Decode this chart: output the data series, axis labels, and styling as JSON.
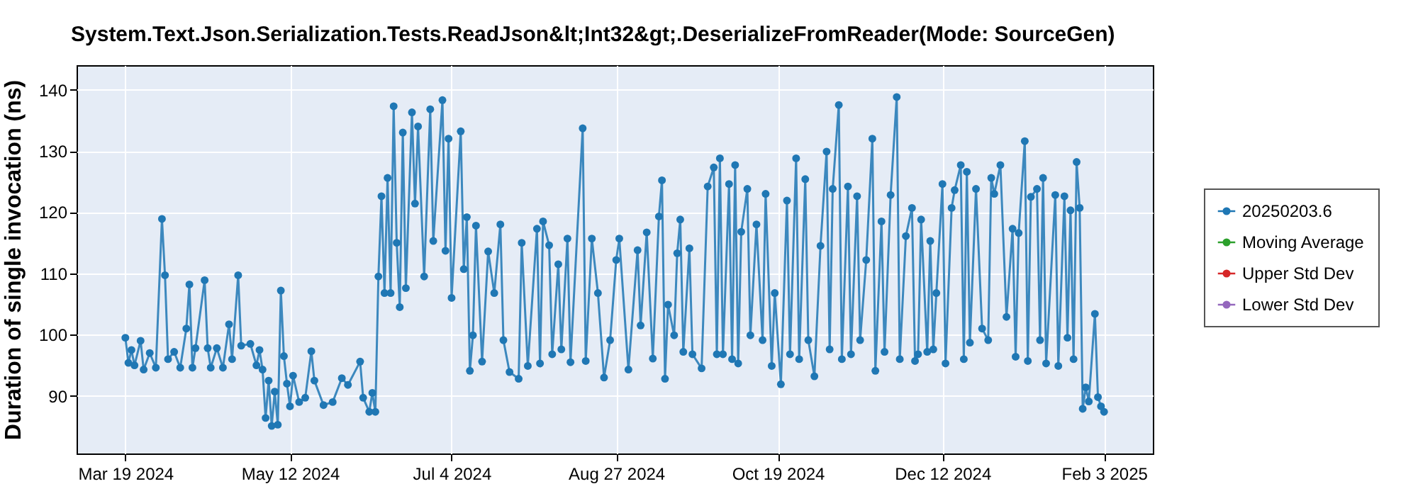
{
  "chart_data": {
    "type": "line",
    "title": "System.Text.Json.Serialization.Tests.ReadJson&lt;Int32&gt;.DeserializeFromReader(Mode: SourceGen)",
    "ylabel": "Duration of single invocation (ns)",
    "x": [
      "2024-03-19",
      "2024-03-20",
      "2024-03-21",
      "2024-03-22",
      "2024-03-24",
      "2024-03-25",
      "2024-03-27",
      "2024-03-29",
      "2024-03-31",
      "2024-04-01",
      "2024-04-02",
      "2024-04-04",
      "2024-04-06",
      "2024-04-08",
      "2024-04-09",
      "2024-04-10",
      "2024-04-11",
      "2024-04-14",
      "2024-04-15",
      "2024-04-16",
      "2024-04-18",
      "2024-04-20",
      "2024-04-22",
      "2024-04-23",
      "2024-04-25",
      "2024-04-26",
      "2024-04-29",
      "2024-05-01",
      "2024-05-02",
      "2024-05-03",
      "2024-05-04",
      "2024-05-05",
      "2024-05-06",
      "2024-05-07",
      "2024-05-08",
      "2024-05-09",
      "2024-05-10",
      "2024-05-11",
      "2024-05-12",
      "2024-05-13",
      "2024-05-15",
      "2024-05-17",
      "2024-05-19",
      "2024-05-20",
      "2024-05-23",
      "2024-05-26",
      "2024-05-29",
      "2024-05-31",
      "2024-06-04",
      "2024-06-05",
      "2024-06-07",
      "2024-06-08",
      "2024-06-09",
      "2024-06-10",
      "2024-06-11",
      "2024-06-12",
      "2024-06-13",
      "2024-06-14",
      "2024-06-15",
      "2024-06-16",
      "2024-06-17",
      "2024-06-18",
      "2024-06-19",
      "2024-06-21",
      "2024-06-22",
      "2024-06-23",
      "2024-06-25",
      "2024-06-27",
      "2024-06-28",
      "2024-07-01",
      "2024-07-02",
      "2024-07-03",
      "2024-07-04",
      "2024-07-07",
      "2024-07-08",
      "2024-07-09",
      "2024-07-10",
      "2024-07-11",
      "2024-07-12",
      "2024-07-14",
      "2024-07-16",
      "2024-07-18",
      "2024-07-20",
      "2024-07-21",
      "2024-07-23",
      "2024-07-26",
      "2024-07-27",
      "2024-07-29",
      "2024-08-01",
      "2024-08-02",
      "2024-08-03",
      "2024-08-05",
      "2024-08-06",
      "2024-08-08",
      "2024-08-09",
      "2024-08-11",
      "2024-08-12",
      "2024-08-16",
      "2024-08-17",
      "2024-08-19",
      "2024-08-21",
      "2024-08-23",
      "2024-08-25",
      "2024-08-27",
      "2024-08-28",
      "2024-08-31",
      "2024-09-03",
      "2024-09-04",
      "2024-09-06",
      "2024-09-08",
      "2024-09-10",
      "2024-09-11",
      "2024-09-12",
      "2024-09-13",
      "2024-09-15",
      "2024-09-16",
      "2024-09-17",
      "2024-09-18",
      "2024-09-20",
      "2024-09-21",
      "2024-09-24",
      "2024-09-26",
      "2024-09-28",
      "2024-09-29",
      "2024-09-30",
      "2024-10-01",
      "2024-10-03",
      "2024-10-04",
      "2024-10-05",
      "2024-10-06",
      "2024-10-07",
      "2024-10-09",
      "2024-10-10",
      "2024-10-12",
      "2024-10-14",
      "2024-10-15",
      "2024-10-17",
      "2024-10-18",
      "2024-10-20",
      "2024-10-22",
      "2024-10-23",
      "2024-10-25",
      "2024-10-26",
      "2024-10-28",
      "2024-10-29",
      "2024-10-31",
      "2024-11-02",
      "2024-11-04",
      "2024-11-05",
      "2024-11-06",
      "2024-11-08",
      "2024-11-09",
      "2024-11-11",
      "2024-11-12",
      "2024-11-14",
      "2024-11-15",
      "2024-11-17",
      "2024-11-19",
      "2024-11-20",
      "2024-11-22",
      "2024-11-23",
      "2024-11-25",
      "2024-11-27",
      "2024-11-28",
      "2024-11-30",
      "2024-12-02",
      "2024-12-03",
      "2024-12-04",
      "2024-12-05",
      "2024-12-07",
      "2024-12-08",
      "2024-12-09",
      "2024-12-10",
      "2024-12-12",
      "2024-12-13",
      "2024-12-15",
      "2024-12-16",
      "2024-12-18",
      "2024-12-19",
      "2024-12-20",
      "2024-12-21",
      "2024-12-23",
      "2024-12-25",
      "2024-12-27",
      "2024-12-28",
      "2024-12-29",
      "2024-12-31",
      "2025-01-02",
      "2025-01-04",
      "2025-01-05",
      "2025-01-06",
      "2025-01-08",
      "2025-01-09",
      "2025-01-10",
      "2025-01-12",
      "2025-01-13",
      "2025-01-14",
      "2025-01-15",
      "2025-01-18",
      "2025-01-19",
      "2025-01-21",
      "2025-01-22",
      "2025-01-23",
      "2025-01-24",
      "2025-01-25",
      "2025-01-26",
      "2025-01-27",
      "2025-01-28",
      "2025-01-29",
      "2025-01-31",
      "2025-02-01",
      "2025-02-02",
      "2025-02-03"
    ],
    "series": [
      {
        "name": "20250203.6",
        "color": "#1f77b4",
        "values": [
          99.5,
          95.4,
          97.5,
          95,
          99,
          94.3,
          97,
          94.6,
          118.9,
          109.7,
          96,
          97.2,
          94.6,
          101,
          108.2,
          94.6,
          97.8,
          108.9,
          97.8,
          94.6,
          97.8,
          94.6,
          101.7,
          96,
          109.7,
          98.2,
          98.5,
          95,
          97.5,
          94.3,
          86.4,
          92.5,
          85.1,
          90.7,
          85.3,
          107.2,
          96.5,
          92,
          88.3,
          93.3,
          89,
          89.7,
          97.3,
          92.5,
          88.5,
          89,
          92.9,
          91.8,
          95.6,
          89.7,
          87.4,
          90.5,
          87.4,
          109.5,
          122.6,
          106.8,
          125.6,
          106.8,
          137.3,
          115,
          104.5,
          133,
          107.6,
          136.3,
          121.4,
          134,
          109.5,
          136.8,
          115.3,
          138.3,
          113.7,
          132,
          106,
          133.2,
          110.7,
          119.2,
          94.1,
          99.9,
          117.8,
          95.6,
          113.6,
          106.8,
          118,
          99.1,
          93.9,
          92.8,
          115,
          94.9,
          117.3,
          95.3,
          118.5,
          114.6,
          96.8,
          111.5,
          97.6,
          115.7,
          95.5,
          133.7,
          95.7,
          115.7,
          106.8,
          93,
          99.1,
          112.2,
          115.7,
          94.3,
          113.8,
          101.5,
          116.7,
          96.1,
          119.3,
          125.2,
          92.8,
          104.9,
          99.9,
          113.3,
          118.8,
          97.2,
          114.1,
          96.8,
          94.5,
          124.2,
          127.3,
          96.8,
          128.8,
          96.8,
          124.6,
          96,
          127.7,
          95.3,
          116.8,
          123.8,
          99.9,
          118,
          99.1,
          123,
          94.9,
          106.8,
          91.9,
          121.9,
          96.8,
          128.8,
          96,
          125.4,
          99.1,
          93.2,
          114.5,
          129.9,
          97.6,
          123.8,
          137.5,
          96,
          124.2,
          96.8,
          122.6,
          99.1,
          112.2,
          132,
          94.1,
          118.5,
          97.2,
          122.8,
          138.8,
          96,
          116.1,
          120.7,
          95.7,
          96.8,
          118.8,
          97.2,
          115.3,
          97.6,
          106.8,
          124.6,
          95.3,
          120.7,
          123.6,
          127.7,
          96,
          126.6,
          98.7,
          123.8,
          101,
          99.1,
          125.6,
          123,
          127.7,
          102.9,
          117.3,
          96.4,
          116.6,
          131.6,
          95.7,
          122.5,
          123.8,
          99.1,
          125.6,
          95.3,
          122.8,
          94.9,
          122.6,
          99.5,
          120.3,
          96,
          128.2,
          120.7,
          87.9,
          91.4,
          89.1,
          103.4,
          89.8,
          88.3,
          87.4
        ]
      },
      {
        "name": "Moving Average",
        "color": "#2ca02c",
        "values": [
          null,
          null,
          null,
          null,
          null,
          null,
          null,
          null,
          null,
          null,
          null,
          null,
          null,
          null,
          null,
          null,
          null,
          null,
          null,
          null,
          null,
          null,
          null,
          null,
          null,
          null,
          null,
          null,
          null,
          null,
          null,
          null,
          null,
          null,
          null,
          null,
          null,
          null,
          null,
          null,
          null,
          null,
          null,
          null,
          null,
          null,
          null,
          null,
          null,
          null,
          null,
          null,
          null,
          null,
          null,
          null,
          null,
          null,
          null,
          null,
          null,
          null,
          null,
          null,
          null,
          null,
          null,
          null,
          null,
          null,
          null,
          null,
          null,
          null,
          null,
          null,
          null,
          null,
          null,
          null,
          null,
          null,
          null,
          null,
          null,
          null,
          null,
          null,
          null,
          null,
          null,
          null,
          null,
          null,
          null,
          null,
          null,
          null,
          null,
          null,
          null,
          null,
          null,
          null,
          null,
          null,
          null,
          null,
          null,
          null,
          null,
          null,
          null,
          null,
          null,
          null,
          null,
          null,
          null,
          null,
          null,
          null,
          null,
          null,
          null,
          null,
          null,
          null,
          null,
          null,
          null,
          null,
          null,
          null,
          null,
          null,
          null,
          null,
          null,
          null,
          null,
          null,
          null,
          null,
          null,
          null,
          null,
          null,
          null,
          null,
          null,
          null,
          null,
          null,
          null,
          null,
          null,
          null,
          null,
          null,
          null,
          null,
          null,
          null,
          null,
          null,
          null,
          null,
          null,
          null,
          null,
          null,
          null,
          null,
          null,
          null,
          null,
          null,
          null,
          null,
          null,
          null,
          null,
          null,
          null,
          null,
          null,
          null,
          null,
          null,
          null,
          null,
          null,
          null,
          null,
          null,
          null,
          null,
          null,
          null,
          null,
          null,
          null,
          null,
          null,
          null,
          null,
          null,
          null,
          null,
          null,
          null,
          null
        ]
      },
      {
        "name": "Upper Std Dev",
        "color": "#d62728",
        "values": [
          null,
          null,
          null,
          null,
          null,
          null,
          null,
          null,
          null,
          null,
          null,
          null,
          null,
          null,
          null,
          null,
          null,
          null,
          null,
          null,
          null,
          null,
          null,
          null,
          null,
          null,
          null,
          null,
          null,
          null,
          null,
          null,
          null,
          null,
          null,
          null,
          null,
          null,
          null,
          null,
          null,
          null,
          null,
          null,
          null,
          null,
          null,
          null,
          null,
          null,
          null,
          null,
          null,
          null,
          null,
          null,
          null,
          null,
          null,
          null,
          null,
          null,
          null,
          null,
          null,
          null,
          null,
          null,
          null,
          null,
          null,
          null,
          null,
          null,
          null,
          null,
          null,
          null,
          null,
          null,
          null,
          null,
          null,
          null,
          null,
          null,
          null,
          null,
          null,
          null,
          null,
          null,
          null,
          null,
          null,
          null,
          null,
          null,
          null,
          null,
          null,
          null,
          null,
          null,
          null,
          null,
          null,
          null,
          null,
          null,
          null,
          null,
          null,
          null,
          null,
          null,
          null,
          null,
          null,
          null,
          null,
          null,
          null,
          null,
          null,
          null,
          null,
          null,
          null,
          null,
          null,
          null,
          null,
          null,
          null,
          null,
          null,
          null,
          null,
          null,
          null,
          null,
          null,
          null,
          null,
          null,
          null,
          null,
          null,
          null,
          null,
          null,
          null,
          null,
          null,
          null,
          null,
          null,
          null,
          null,
          null,
          null,
          null,
          null,
          null,
          null,
          null,
          null,
          null,
          null,
          null,
          null,
          null,
          null,
          null,
          null,
          null,
          null,
          null,
          null,
          null,
          null,
          null,
          null,
          null,
          null,
          null,
          null,
          null,
          null,
          null,
          null,
          null,
          null,
          null,
          null,
          null,
          null,
          null,
          null,
          null,
          null,
          null,
          null,
          null,
          null,
          null,
          null,
          null,
          null,
          null,
          null,
          null
        ]
      },
      {
        "name": "Lower Std Dev",
        "color": "#9467bd",
        "values": [
          null,
          null,
          null,
          null,
          null,
          null,
          null,
          null,
          null,
          null,
          null,
          null,
          null,
          null,
          null,
          null,
          null,
          null,
          null,
          null,
          null,
          null,
          null,
          null,
          null,
          null,
          null,
          null,
          null,
          null,
          null,
          null,
          null,
          null,
          null,
          null,
          null,
          null,
          null,
          null,
          null,
          null,
          null,
          null,
          null,
          null,
          null,
          null,
          null,
          null,
          null,
          null,
          null,
          null,
          null,
          null,
          null,
          null,
          null,
          null,
          null,
          null,
          null,
          null,
          null,
          null,
          null,
          null,
          null,
          null,
          null,
          null,
          null,
          null,
          null,
          null,
          null,
          null,
          null,
          null,
          null,
          null,
          null,
          null,
          null,
          null,
          null,
          null,
          null,
          null,
          null,
          null,
          null,
          null,
          null,
          null,
          null,
          null,
          null,
          null,
          null,
          null,
          null,
          null,
          null,
          null,
          null,
          null,
          null,
          null,
          null,
          null,
          null,
          null,
          null,
          null,
          null,
          null,
          null,
          null,
          null,
          null,
          null,
          null,
          null,
          null,
          null,
          null,
          null,
          null,
          null,
          null,
          null,
          null,
          null,
          null,
          null,
          null,
          null,
          null,
          null,
          null,
          null,
          null,
          null,
          null,
          null,
          null,
          null,
          null,
          null,
          null,
          null,
          null,
          null,
          null,
          null,
          null,
          null,
          null,
          null,
          null,
          null,
          null,
          null,
          null,
          null,
          null,
          null,
          null,
          null,
          null,
          null,
          null,
          null,
          null,
          null,
          null,
          null,
          null,
          null,
          null,
          null,
          null,
          null,
          null,
          null,
          null,
          null,
          null,
          null,
          null,
          null,
          null,
          null,
          null,
          null,
          null,
          null,
          null,
          null,
          null,
          null,
          null,
          null,
          null,
          null,
          null,
          null,
          null,
          null,
          null,
          null
        ]
      }
    ],
    "xlim": [
      "2024-03-03",
      "2025-02-19"
    ],
    "xticks": [
      {
        "value": "2024-03-19",
        "label": "Mar 19 2024"
      },
      {
        "value": "2024-05-12",
        "label": "May 12 2024"
      },
      {
        "value": "2024-07-04",
        "label": "Jul 4 2024"
      },
      {
        "value": "2024-08-27",
        "label": "Aug 27 2024"
      },
      {
        "value": "2024-10-19",
        "label": "Oct 19 2024"
      },
      {
        "value": "2024-12-12",
        "label": "Dec 12 2024"
      },
      {
        "value": "2025-02-03",
        "label": "Feb 3 2025"
      }
    ],
    "ylim": [
      80.6,
      144
    ],
    "yticks": [
      90,
      100,
      110,
      120,
      130,
      140
    ],
    "grid": true,
    "legend": "right",
    "marker": "circle",
    "line_style": "solid"
  }
}
